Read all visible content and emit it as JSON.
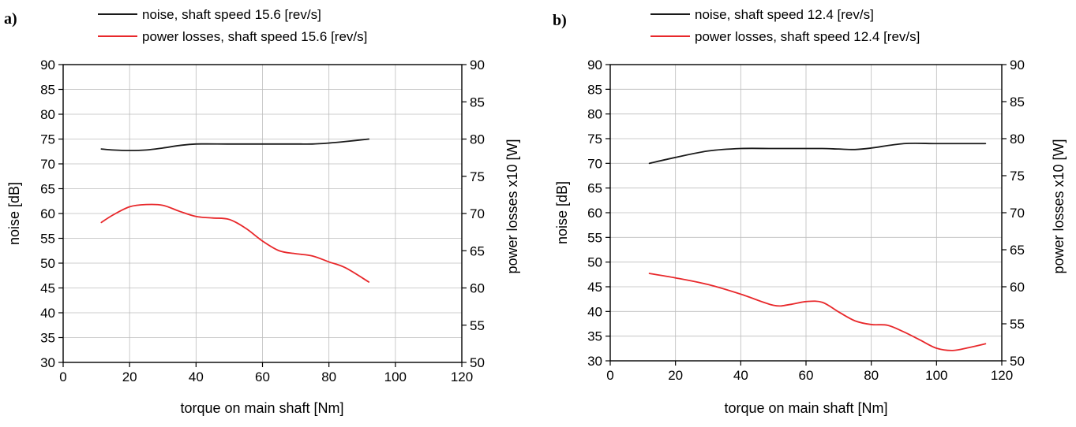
{
  "colors": {
    "noise": "#1a1a1a",
    "power": "#e8282b",
    "grid": "#bdbdbd"
  },
  "chart_data": [
    {
      "type": "line",
      "panel_label": "a)",
      "xlabel": "torque on main shaft [Nm]",
      "ylabel": "noise  [dB]",
      "y2label": "power losses x10  [W]",
      "xlim": [
        0,
        120
      ],
      "ylim": [
        30,
        90
      ],
      "y2lim": [
        50,
        90
      ],
      "xticks": [
        "0",
        "20",
        "40",
        "60",
        "80",
        "100",
        "120"
      ],
      "yticks": [
        "30",
        "35",
        "40",
        "45",
        "50",
        "55",
        "60",
        "65",
        "70",
        "75",
        "80",
        "85",
        "90"
      ],
      "y2ticks": [
        "50",
        "55",
        "60",
        "65",
        "70",
        "75",
        "80",
        "85",
        "90"
      ],
      "grid": true,
      "legend_position": "top",
      "series": [
        {
          "name": "noise,  shaft speed 15.6 [rev/s]",
          "axis": "left",
          "color": "#1a1a1a",
          "x": [
            11.5,
            15,
            20,
            25,
            30,
            35,
            40,
            50,
            60,
            70,
            75,
            80,
            85,
            92
          ],
          "y": [
            73,
            72.8,
            72.7,
            72.8,
            73.2,
            73.7,
            74,
            74,
            74,
            74,
            74,
            74.2,
            74.5,
            75
          ]
        },
        {
          "name": "power losses, shaft speed 15.6 [rev/s]",
          "axis": "right",
          "color": "#e8282b",
          "x": [
            11.5,
            15,
            20,
            25,
            30,
            35,
            40,
            45,
            50,
            55,
            60,
            65,
            70,
            75,
            80,
            85,
            92
          ],
          "y": [
            68.8,
            69.8,
            70.9,
            71.2,
            71.1,
            70.3,
            69.6,
            69.4,
            69.2,
            68,
            66.3,
            65,
            64.6,
            64.3,
            63.5,
            62.7,
            60.8
          ]
        }
      ]
    },
    {
      "type": "line",
      "panel_label": "b)",
      "xlabel": "torque on main shaft [Nm]",
      "ylabel": "noise  [dB]",
      "y2label": "power losses x10  [W]",
      "xlim": [
        0,
        120
      ],
      "ylim": [
        30,
        90
      ],
      "y2lim": [
        50,
        90
      ],
      "xticks": [
        "0",
        "20",
        "40",
        "60",
        "80",
        "100",
        "120"
      ],
      "yticks": [
        "30",
        "35",
        "40",
        "45",
        "50",
        "55",
        "60",
        "65",
        "70",
        "75",
        "80",
        "85",
        "90"
      ],
      "y2ticks": [
        "50",
        "55",
        "60",
        "65",
        "70",
        "75",
        "80",
        "85",
        "90"
      ],
      "grid": true,
      "legend_position": "top",
      "series": [
        {
          "name": "noise,  shaft speed 12.4 [rev/s]",
          "axis": "left",
          "color": "#1a1a1a",
          "x": [
            12,
            20,
            30,
            40,
            50,
            60,
            65,
            70,
            75,
            80,
            90,
            100,
            110,
            115
          ],
          "y": [
            70,
            71.2,
            72.5,
            73,
            73,
            73,
            73,
            72.9,
            72.8,
            73.1,
            74,
            74,
            74,
            74
          ]
        },
        {
          "name": "power losses, shaft speed 12.4 [rev/s]",
          "axis": "right",
          "color": "#e8282b",
          "x": [
            12,
            20,
            30,
            40,
            50,
            55,
            60,
            65,
            70,
            75,
            80,
            85,
            90,
            95,
            100,
            105,
            110,
            115
          ],
          "y": [
            61.8,
            61.2,
            60.3,
            59,
            57.5,
            57.6,
            58,
            57.9,
            56.6,
            55.4,
            54.9,
            54.8,
            53.9,
            52.8,
            51.7,
            51.4,
            51.8,
            52.3
          ]
        }
      ]
    }
  ]
}
